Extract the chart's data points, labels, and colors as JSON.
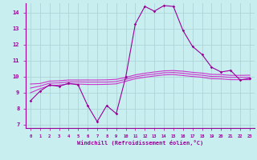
{
  "xlabel": "Windchill (Refroidissement éolien,°C)",
  "xlim": [
    -0.5,
    23.5
  ],
  "ylim": [
    6.8,
    14.6
  ],
  "yticks": [
    7,
    8,
    9,
    10,
    11,
    12,
    13,
    14
  ],
  "xticks": [
    0,
    1,
    2,
    3,
    4,
    5,
    6,
    7,
    8,
    9,
    10,
    11,
    12,
    13,
    14,
    15,
    16,
    17,
    18,
    19,
    20,
    21,
    22,
    23
  ],
  "background_color": "#c8eef0",
  "grid_color": "#aed4d8",
  "line_color": "#990099",
  "line_color2": "#cc33cc",
  "curve1_x": [
    0,
    1,
    2,
    3,
    4,
    5,
    6,
    7,
    8,
    9,
    10,
    11,
    12,
    13,
    14,
    15,
    16,
    17,
    18,
    19,
    20,
    21,
    22,
    23
  ],
  "curve1_y": [
    8.5,
    9.1,
    9.5,
    9.4,
    9.6,
    9.5,
    8.2,
    7.2,
    8.2,
    7.7,
    10.0,
    13.3,
    14.4,
    14.1,
    14.45,
    14.4,
    12.9,
    11.9,
    11.4,
    10.6,
    10.3,
    10.4,
    9.8,
    9.9
  ],
  "curve2_x": [
    0,
    1,
    2,
    3,
    4,
    5,
    6,
    7,
    8,
    9,
    10,
    11,
    12,
    13,
    14,
    15,
    16,
    17,
    18,
    19,
    20,
    21,
    22,
    23
  ],
  "curve2_y": [
    9.0,
    9.25,
    9.45,
    9.48,
    9.55,
    9.55,
    9.52,
    9.52,
    9.53,
    9.56,
    9.72,
    9.88,
    9.97,
    10.05,
    10.12,
    10.14,
    10.08,
    10.02,
    9.97,
    9.88,
    9.87,
    9.82,
    9.82,
    9.82
  ],
  "curve3_x": [
    0,
    1,
    2,
    3,
    4,
    5,
    6,
    7,
    8,
    9,
    10,
    11,
    12,
    13,
    14,
    15,
    16,
    17,
    18,
    19,
    20,
    21,
    22,
    23
  ],
  "curve3_y": [
    9.3,
    9.42,
    9.6,
    9.62,
    9.68,
    9.68,
    9.67,
    9.67,
    9.67,
    9.7,
    9.84,
    10.0,
    10.1,
    10.17,
    10.25,
    10.27,
    10.22,
    10.15,
    10.1,
    10.02,
    10.01,
    9.96,
    9.96,
    9.97
  ],
  "curve4_x": [
    0,
    1,
    2,
    3,
    4,
    5,
    6,
    7,
    8,
    9,
    10,
    11,
    12,
    13,
    14,
    15,
    16,
    17,
    18,
    19,
    20,
    21,
    22,
    23
  ],
  "curve4_y": [
    9.55,
    9.58,
    9.73,
    9.75,
    9.8,
    9.8,
    9.8,
    9.8,
    9.81,
    9.84,
    9.96,
    10.12,
    10.22,
    10.3,
    10.37,
    10.39,
    10.35,
    10.28,
    10.23,
    10.15,
    10.14,
    10.09,
    10.09,
    10.1
  ]
}
